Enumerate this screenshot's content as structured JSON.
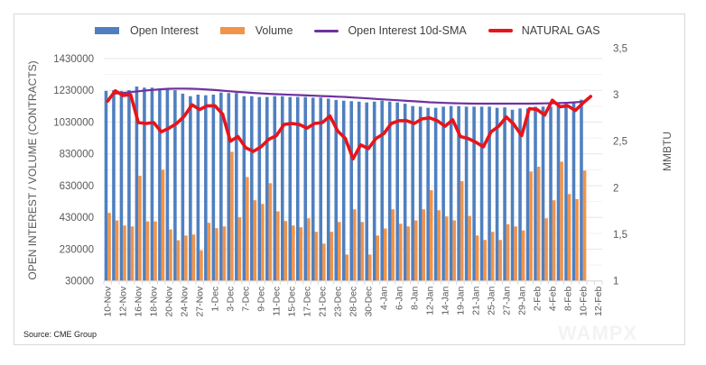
{
  "chart_data": {
    "type": "bar",
    "title": "",
    "legend_position": "top",
    "legend": [
      {
        "name": "Open Interest",
        "kind": "bar",
        "color": "#4f7fc0"
      },
      {
        "name": "Volume",
        "kind": "bar",
        "color": "#f0944a"
      },
      {
        "name": "Open Interest 10d-SMA",
        "kind": "line",
        "color": "#7030a0"
      },
      {
        "name": "NATURAL GAS",
        "kind": "line",
        "color": "#e8141b"
      }
    ],
    "ylabel": "OPEN INTEREST / VOLUME (CONTRACTS)",
    "y2label": "MMBTU",
    "ylim": [
      30000,
      1430000
    ],
    "y_ticks": [
      "1430000",
      "1230000",
      "1030000",
      "830000",
      "630000",
      "430000",
      "230000",
      "30000"
    ],
    "y2lim": [
      1,
      3.5
    ],
    "y2_ticks": [
      "3,5",
      "3",
      "2,5",
      "2",
      "1,5",
      "1"
    ],
    "grid": true,
    "x_tick_labels": [
      "10-Nov",
      "12-Nov",
      "16-Nov",
      "18-Nov",
      "20-Nov",
      "24-Nov",
      "27-Nov",
      "1-Dec",
      "3-Dec",
      "7-Dec",
      "9-Dec",
      "11-Dec",
      "15-Dec",
      "17-Dec",
      "21-Dec",
      "23-Dec",
      "28-Dec",
      "30-Dec",
      "4-Jan",
      "6-Jan",
      "8-Jan",
      "12-Jan",
      "14-Jan",
      "19-Jan",
      "21-Jan",
      "25-Jan",
      "27-Jan",
      "29-Jan",
      "2-Feb",
      "4-Feb",
      "8-Feb",
      "10-Feb",
      "12-Feb"
    ],
    "category_count": 65,
    "series": [
      {
        "name": "Open Interest",
        "type": "bar",
        "axis": "left",
        "values": [
          1226000,
          1231000,
          1226000,
          1231000,
          1254000,
          1247000,
          1247000,
          1241000,
          1237000,
          1231000,
          1209000,
          1193000,
          1203000,
          1199000,
          1203000,
          1216000,
          1213000,
          1213000,
          1193000,
          1193000,
          1188000,
          1188000,
          1193000,
          1193000,
          1188000,
          1188000,
          1188000,
          1184000,
          1184000,
          1178000,
          1169000,
          1165000,
          1162000,
          1159000,
          1154000,
          1159000,
          1165000,
          1159000,
          1154000,
          1146000,
          1131000,
          1127000,
          1120000,
          1120000,
          1127000,
          1131000,
          1131000,
          1127000,
          1127000,
          1127000,
          1127000,
          1120000,
          1123000,
          1108000,
          1116000,
          1116000,
          1127000,
          1127000,
          1127000,
          1131000,
          1150000,
          1150000,
          1171000,
          null,
          null
        ]
      },
      {
        "name": "Volume",
        "type": "bar",
        "axis": "left",
        "values": [
          458000,
          411000,
          379000,
          373000,
          692000,
          405000,
          405000,
          730000,
          354000,
          286000,
          316000,
          322000,
          223000,
          396000,
          362000,
          373000,
          843000,
          431000,
          684000,
          538000,
          515000,
          645000,
          468000,
          407000,
          379000,
          368000,
          424000,
          339000,
          265000,
          339000,
          401000,
          196000,
          481000,
          401000,
          196000,
          316000,
          360000,
          481000,
          390000,
          373000,
          411000,
          481000,
          601000,
          475000,
          436000,
          411000,
          658000,
          439000,
          316000,
          288000,
          339000,
          288000,
          387000,
          373000,
          348000,
          719000,
          749000,
          424000,
          538000,
          781000,
          577000,
          545000,
          725000,
          null,
          null
        ]
      },
      {
        "name": "Open Interest 10d-SMA",
        "type": "line",
        "axis": "left",
        "values": [
          null,
          1210000,
          1214000,
          1219000,
          1224000,
          1229000,
          1233000,
          1237000,
          1240000,
          1241000,
          1241000,
          1240000,
          1238000,
          1235000,
          1232000,
          1228000,
          1224000,
          1220000,
          1217000,
          1214000,
          1211000,
          1208000,
          1206000,
          1204000,
          1202000,
          1200000,
          1198000,
          1196000,
          1194000,
          1192000,
          1190000,
          1188000,
          1185000,
          1182000,
          1179000,
          1176000,
          1173000,
          1170000,
          1167000,
          1164000,
          1161000,
          1158000,
          1155000,
          1153000,
          1151000,
          1149000,
          1148000,
          1147000,
          1146000,
          1146000,
          1146000,
          1146000,
          1146000,
          1146000,
          1146000,
          1146000,
          1147000,
          1148000,
          1149000,
          1150000,
          1152000,
          1155000,
          1158000,
          null,
          null
        ]
      },
      {
        "name": "NATURAL GAS",
        "type": "line",
        "axis": "right",
        "values": [
          2.93,
          3.04,
          2.99,
          3.0,
          2.7,
          2.69,
          2.7,
          2.6,
          2.64,
          2.69,
          2.77,
          2.89,
          2.84,
          2.88,
          2.88,
          2.79,
          2.5,
          2.55,
          2.43,
          2.39,
          2.44,
          2.52,
          2.56,
          2.68,
          2.69,
          2.68,
          2.64,
          2.69,
          2.7,
          2.77,
          2.61,
          2.53,
          2.31,
          2.46,
          2.42,
          2.53,
          2.58,
          2.69,
          2.72,
          2.72,
          2.69,
          2.74,
          2.75,
          2.72,
          2.66,
          2.73,
          2.55,
          2.53,
          2.49,
          2.44,
          2.6,
          2.66,
          2.76,
          2.68,
          2.56,
          2.85,
          2.84,
          2.78,
          2.94,
          2.87,
          2.88,
          2.83,
          2.91,
          2.98,
          null
        ]
      }
    ]
  },
  "source": "Source: CME Group",
  "watermark": "WAMPX"
}
